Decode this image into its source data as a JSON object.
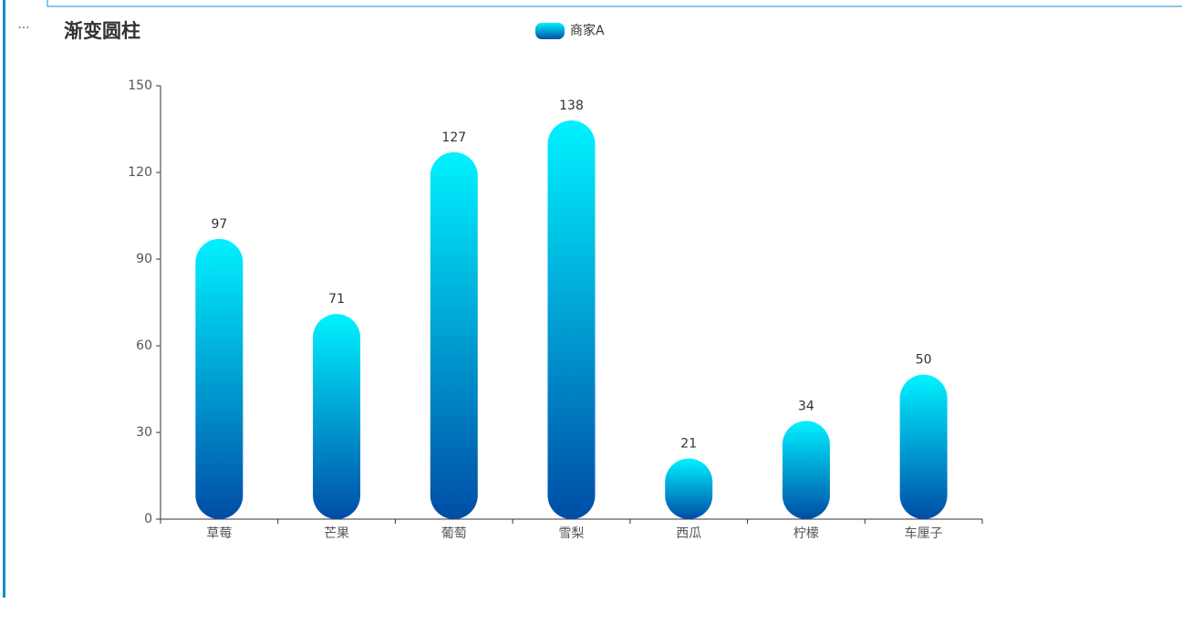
{
  "chart_data": {
    "type": "bar",
    "title": "渐变圆柱",
    "categories": [
      "草莓",
      "芒果",
      "葡萄",
      "雪梨",
      "西瓜",
      "柠檬",
      "车厘子"
    ],
    "series": [
      {
        "name": "商家A",
        "color": [
          "#00f2ff",
          "#004da6"
        ],
        "values": [
          97,
          71,
          127,
          138,
          21,
          34,
          50
        ]
      }
    ],
    "ylim": [
      0,
      150
    ],
    "yticks": [
      0,
      30,
      60,
      90,
      120,
      150
    ],
    "grid": false
  }
}
